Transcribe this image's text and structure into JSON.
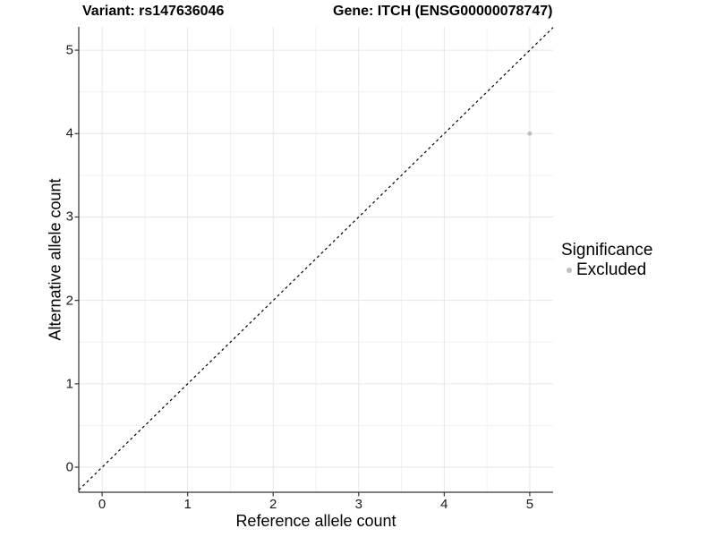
{
  "header": {
    "variant_title": "Variant: rs147636046",
    "gene_title": "Gene: ITCH (ENSG00000078747)"
  },
  "chart_data": {
    "type": "scatter",
    "xlabel": "Reference allele count",
    "ylabel": "Alternative allele count",
    "xlim": [
      -0.273,
      5.273
    ],
    "ylim": [
      -0.3,
      5.28
    ],
    "x_ticks": [
      0,
      1,
      2,
      3,
      4,
      5
    ],
    "y_ticks": [
      0,
      1,
      2,
      3,
      4,
      5
    ],
    "x_minor": [
      0.5,
      1.5,
      2.5,
      3.5,
      4.5
    ],
    "y_minor": [
      0.5,
      1.5,
      2.5,
      3.5,
      4.5
    ],
    "grid": true,
    "series": [
      {
        "name": "Excluded",
        "color": "#bebebe",
        "points": [
          {
            "x": 5,
            "y": 4
          }
        ]
      }
    ],
    "abline": {
      "slope": 1,
      "intercept": 0,
      "style": "dashed",
      "color": "#000000"
    },
    "legend": {
      "title": "Significance",
      "position": "right",
      "items": [
        {
          "label": "Excluded",
          "color": "#bebebe"
        }
      ]
    },
    "colors": {
      "background": "#ffffff",
      "grid_major": "#e7e7e7",
      "grid_minor": "#f2f2f2",
      "axis": "#333333",
      "tick_text": "#1a1a1a",
      "point": "#bebebe"
    }
  }
}
